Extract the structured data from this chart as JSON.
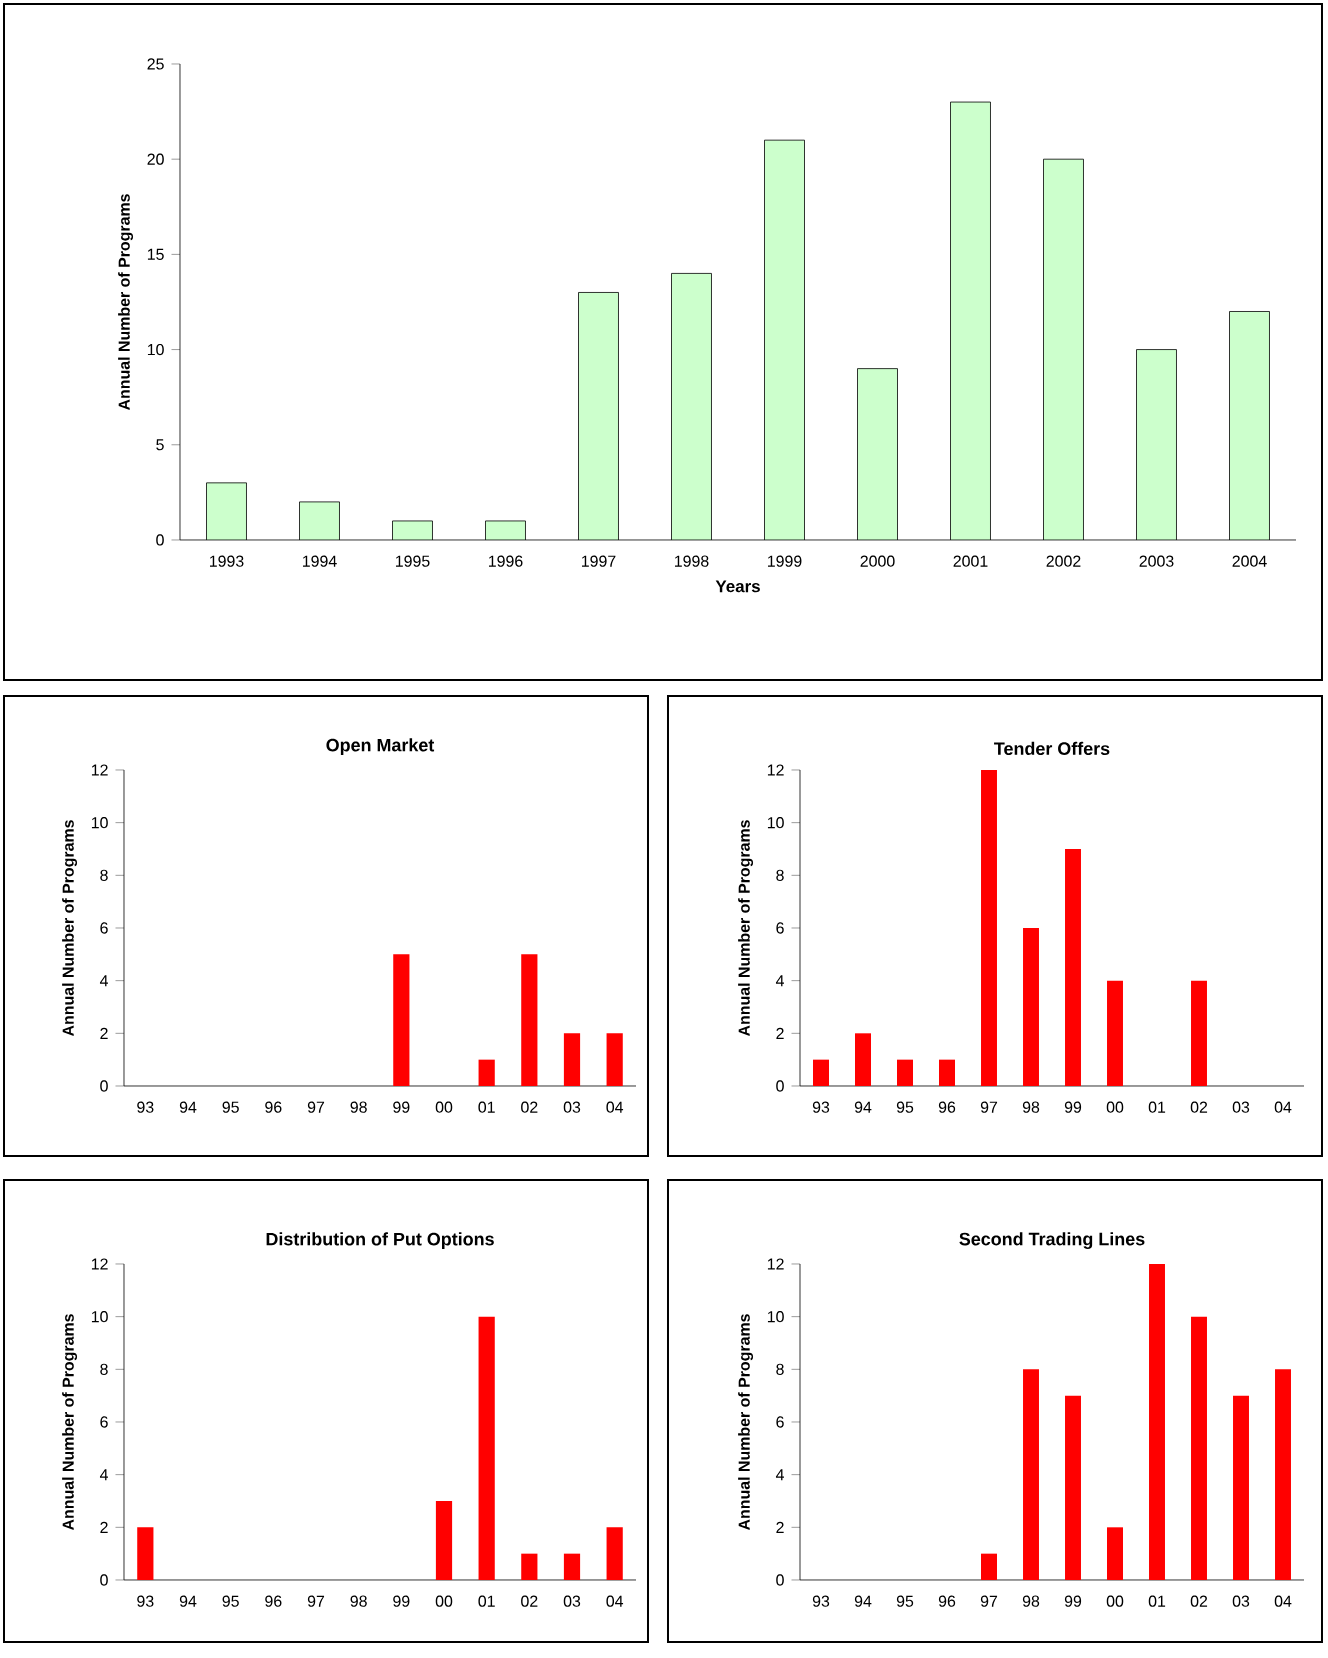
{
  "chart_data": [
    {
      "type": "bar",
      "xlabel": "Years",
      "ylabel": "Annual Number of Programs",
      "categories": [
        "1993",
        "1994",
        "1995",
        "1996",
        "1997",
        "1998",
        "1999",
        "2000",
        "2001",
        "2002",
        "2003",
        "2004"
      ],
      "values": [
        3,
        2,
        1,
        1,
        13,
        14,
        21,
        9,
        23,
        20,
        10,
        12
      ],
      "color": "#ccffcc",
      "ylim": [
        0,
        25
      ],
      "yticks": [
        0,
        5,
        10,
        15,
        20,
        25
      ]
    },
    {
      "type": "bar",
      "title": "Open Market",
      "ylabel": "Annual Number of Programs",
      "categories": [
        "93",
        "94",
        "95",
        "96",
        "97",
        "98",
        "99",
        "00",
        "01",
        "02",
        "03",
        "04"
      ],
      "values": [
        0,
        0,
        0,
        0,
        0,
        0,
        5,
        0,
        1,
        5,
        2,
        2
      ],
      "color": "#ff0000",
      "ylim": [
        0,
        12
      ],
      "yticks": [
        0,
        2,
        4,
        6,
        8,
        10,
        12
      ]
    },
    {
      "type": "bar",
      "title": "Tender Offers",
      "ylabel": "Annual Number of Programs",
      "categories": [
        "93",
        "94",
        "95",
        "96",
        "97",
        "98",
        "99",
        "00",
        "01",
        "02",
        "03",
        "04"
      ],
      "values": [
        1,
        2,
        1,
        1,
        12,
        6,
        9,
        4,
        0,
        4,
        0,
        0
      ],
      "color": "#ff0000",
      "ylim": [
        0,
        12
      ],
      "yticks": [
        0,
        2,
        4,
        6,
        8,
        10,
        12
      ]
    },
    {
      "type": "bar",
      "title": "Distribution of Put Options",
      "ylabel": "Annual Number of Programs",
      "categories": [
        "93",
        "94",
        "95",
        "96",
        "97",
        "98",
        "99",
        "00",
        "01",
        "02",
        "03",
        "04"
      ],
      "values": [
        2,
        0,
        0,
        0,
        0,
        0,
        0,
        3,
        10,
        1,
        1,
        2
      ],
      "color": "#ff0000",
      "ylim": [
        0,
        12
      ],
      "yticks": [
        0,
        2,
        4,
        6,
        8,
        10,
        12
      ]
    },
    {
      "type": "bar",
      "title": "Second Trading Lines",
      "ylabel": "Annual Number of Programs",
      "categories": [
        "93",
        "94",
        "95",
        "96",
        "97",
        "98",
        "99",
        "00",
        "01",
        "02",
        "03",
        "04"
      ],
      "values": [
        0,
        0,
        0,
        0,
        1,
        8,
        7,
        2,
        12,
        10,
        7,
        8
      ],
      "color": "#ff0000",
      "ylim": [
        0,
        12
      ],
      "yticks": [
        0,
        2,
        4,
        6,
        8,
        10,
        12
      ]
    }
  ]
}
